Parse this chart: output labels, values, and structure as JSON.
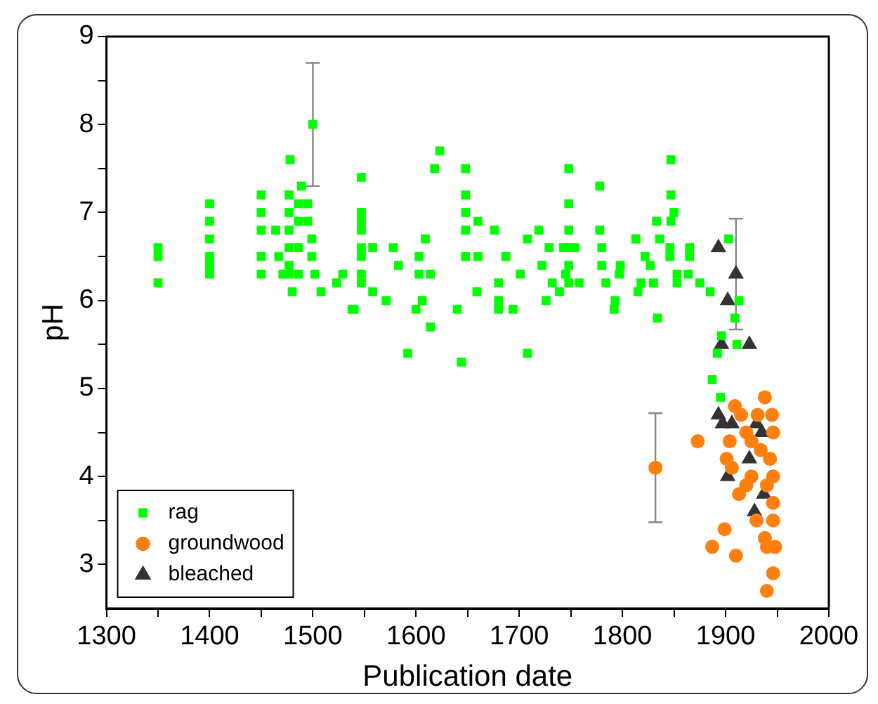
{
  "chart_data": {
    "type": "scatter",
    "xlabel": "Publication date",
    "ylabel": "pH",
    "xlim": [
      1300,
      2000
    ],
    "ylim": [
      2.5,
      9
    ],
    "xticks": [
      1300,
      {
        "value": 1350,
        "label": null
      },
      1400,
      {
        "value": 1450,
        "label": null
      },
      1500,
      {
        "value": 1550,
        "label": null
      },
      1600,
      {
        "value": 1650,
        "label": null
      },
      1700,
      {
        "value": 1750,
        "label": null
      },
      1800,
      {
        "value": 1850,
        "label": null
      },
      1900,
      {
        "value": 1950,
        "label": null
      },
      2000
    ],
    "yticks": [
      3,
      {
        "value": 3.5,
        "label": null
      },
      4,
      {
        "value": 4.5,
        "label": null
      },
      5,
      {
        "value": 5.5,
        "label": null
      },
      6,
      {
        "value": 6.5,
        "label": null
      },
      7,
      {
        "value": 7.5,
        "label": null
      },
      8,
      {
        "value": 8.5,
        "label": null
      },
      9
    ],
    "grid": false,
    "legend": "bottom left",
    "series": [
      {
        "name": "rag",
        "color": "#00ff00",
        "marker": "square",
        "x": [
          1350,
          1350,
          1350,
          1400,
          1400,
          1400,
          1400,
          1400,
          1400,
          1450,
          1450,
          1450,
          1450,
          1450,
          1464,
          1467,
          1471,
          1477,
          1477,
          1477,
          1477,
          1477,
          1477,
          1478,
          1480,
          1486,
          1486,
          1486,
          1486,
          1489,
          1495,
          1495,
          1499,
          1499,
          1500,
          1502,
          1508,
          1523,
          1529,
          1538,
          1547,
          1547,
          1547,
          1547,
          1547,
          1547,
          1547,
          1547,
          1540,
          1558,
          1558,
          1571,
          1578,
          1583,
          1603,
          1603,
          1609,
          1614,
          1606,
          1600,
          1614,
          1592,
          1623,
          1618,
          1648,
          1648,
          1648,
          1648,
          1648,
          1660,
          1660,
          1659,
          1640,
          1644,
          1676,
          1687,
          1680,
          1680,
          1680,
          1694,
          1701,
          1708,
          1719,
          1729,
          1722,
          1708,
          1726,
          1732,
          1748,
          1748,
          1748,
          1748,
          1748,
          1743,
          1754,
          1745,
          1748,
          1758,
          1739,
          1778,
          1778,
          1780,
          1780,
          1784,
          1797,
          1792,
          1813,
          1815,
          1847,
          1847,
          1847,
          1850,
          1833,
          1813,
          1836,
          1822,
          1827,
          1846,
          1846,
          1865,
          1865,
          1798,
          1818,
          1830,
          1853,
          1853,
          1864,
          1875,
          1885,
          1793,
          1834,
          1903,
          1913,
          1909,
          1896,
          1911,
          1892,
          1887,
          1895
        ],
        "values": [
          6.6,
          6.5,
          6.2,
          7.1,
          6.9,
          6.7,
          6.5,
          6.4,
          6.3,
          7.2,
          7.0,
          6.8,
          6.5,
          6.3,
          6.8,
          6.5,
          6.3,
          7.2,
          7.0,
          6.8,
          6.6,
          6.4,
          6.3,
          7.6,
          6.1,
          7.1,
          6.9,
          6.6,
          6.3,
          7.3,
          7.1,
          6.9,
          6.7,
          6.5,
          8.0,
          6.3,
          6.1,
          6.2,
          6.3,
          5.9,
          7.4,
          7.0,
          6.9,
          6.8,
          6.6,
          6.5,
          6.3,
          6.2,
          5.9,
          6.6,
          6.1,
          6.0,
          6.6,
          6.4,
          6.5,
          6.3,
          6.7,
          6.3,
          6.0,
          5.9,
          5.7,
          5.4,
          7.7,
          7.5,
          7.5,
          7.2,
          7.0,
          6.8,
          6.5,
          6.9,
          6.5,
          6.1,
          5.9,
          5.3,
          6.8,
          6.5,
          6.2,
          6.0,
          5.9,
          5.9,
          6.3,
          6.7,
          6.8,
          6.6,
          6.4,
          5.4,
          6.0,
          6.2,
          7.5,
          7.1,
          6.8,
          6.6,
          6.4,
          6.6,
          6.6,
          6.3,
          6.2,
          6.2,
          6.1,
          7.3,
          6.8,
          6.6,
          6.4,
          6.2,
          6.3,
          5.9,
          6.7,
          6.1,
          7.6,
          7.2,
          6.9,
          7.0,
          6.9,
          6.7,
          6.7,
          6.5,
          6.4,
          6.6,
          6.5,
          6.5,
          6.6,
          6.4,
          6.2,
          6.2,
          6.3,
          6.2,
          6.3,
          6.2,
          6.1,
          6.0,
          5.8,
          6.7,
          6.0,
          5.8,
          5.6,
          5.5,
          5.4,
          5.1,
          4.9
        ],
        "errors": [
          null,
          null,
          null,
          null,
          null,
          null,
          null,
          null,
          null,
          null,
          null,
          null,
          null,
          null,
          null,
          null,
          null,
          null,
          null,
          null,
          null,
          null,
          null,
          null,
          null,
          null,
          null,
          null,
          null,
          null,
          null,
          null,
          null,
          null,
          0.7,
          null,
          null,
          null,
          null,
          null,
          null,
          null,
          null,
          null,
          null,
          null,
          null,
          null,
          null,
          null,
          null,
          null,
          null,
          null,
          null,
          null,
          null,
          null,
          null,
          null,
          null,
          null,
          null,
          null,
          null,
          null,
          null,
          null,
          null,
          null,
          null,
          null,
          null,
          null,
          null,
          null,
          null,
          null,
          null,
          null,
          null,
          null,
          null,
          null,
          null,
          null,
          null,
          null,
          null,
          null,
          null,
          null,
          null,
          null,
          null,
          null,
          null,
          null,
          null,
          null,
          null,
          null,
          null,
          null,
          null,
          null,
          null,
          null,
          null,
          null,
          null,
          null,
          null,
          null,
          null,
          null,
          null,
          null,
          null,
          null,
          null,
          null,
          null,
          null,
          null,
          null,
          null,
          null,
          null,
          null,
          null,
          null,
          null,
          null,
          null,
          null,
          null,
          null,
          null
        ]
      },
      {
        "name": "groundwood",
        "color": "#ff7f0e",
        "marker": "circle",
        "x": [
          1832,
          1873,
          1887,
          1899,
          1910,
          1909,
          1915,
          1904,
          1901,
          1906,
          1920,
          1925,
          1920,
          1925,
          1913,
          1931,
          1938,
          1945,
          1946,
          1934,
          1943,
          1946,
          1940,
          1946,
          1930,
          1946,
          1938,
          1940,
          1948,
          1946,
          1940
        ],
        "values": [
          4.1,
          4.4,
          3.2,
          3.4,
          3.1,
          4.8,
          4.7,
          4.4,
          4.2,
          4.1,
          4.5,
          4.4,
          3.9,
          4.0,
          3.8,
          4.7,
          4.9,
          4.7,
          4.5,
          4.3,
          4.2,
          4.0,
          3.9,
          3.7,
          3.5,
          3.5,
          3.3,
          3.2,
          3.2,
          2.9,
          2.7
        ],
        "errors": [
          0.62,
          null,
          null,
          null,
          null,
          null,
          null,
          null,
          null,
          null,
          null,
          null,
          null,
          null,
          null,
          null,
          null,
          null,
          null,
          null,
          null,
          null,
          null,
          null,
          null,
          null,
          null,
          null,
          null,
          null,
          null
        ]
      },
      {
        "name": "bleached",
        "color": "#333333",
        "marker": "triangle",
        "x": [
          1893,
          1910,
          1902,
          1896,
          1923,
          1893,
          1897,
          1906,
          1930,
          1935,
          1923,
          1902,
          1937,
          1928
        ],
        "values": [
          6.6,
          6.3,
          6.0,
          5.5,
          5.5,
          4.7,
          4.6,
          4.6,
          4.6,
          4.5,
          4.2,
          4.0,
          3.8,
          3.6
        ],
        "errors": [
          null,
          0.63,
          null,
          null,
          null,
          null,
          null,
          null,
          null,
          null,
          null,
          null,
          null,
          null
        ]
      }
    ]
  }
}
